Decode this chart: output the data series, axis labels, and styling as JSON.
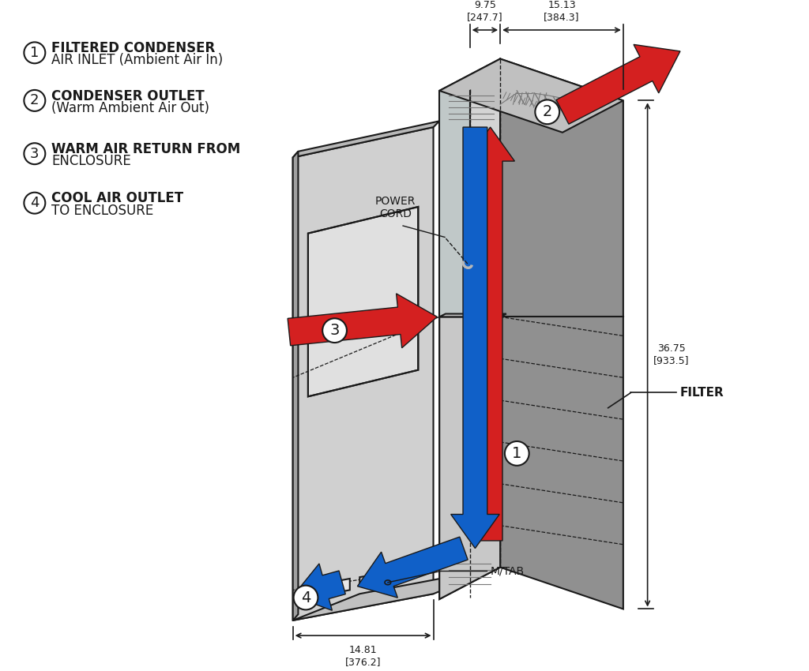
{
  "bg_color": "#ffffff",
  "lc": "#1a1a1a",
  "dark_face": "#909090",
  "mid_face": "#b8b8b8",
  "light_face": "#d4d4d4",
  "top_face": "#c0c0c0",
  "inner_face": "#c8c8c8",
  "door_face": "#d0d0d0",
  "door_edge": "#a0a0a0",
  "vent_color": "#787878",
  "red_arrow": "#d42020",
  "red_arrow_dark": "#aa1010",
  "blue_arrow": "#1060c8",
  "blue_arrow_dark": "#0040a0",
  "dim_color": "#1a1a1a",
  "label1_l1": "FILTERED CONDENSER",
  "label1_l2": "AIR INLET (Ambient Air In)",
  "label2_l1": "CONDENSER OUTLET",
  "label2_l2": "(Warm Ambient Air Out)",
  "label3_l1": "WARM AIR RETURN FROM",
  "label3_l2": "ENCLOSURE",
  "label4_l1": "COOL AIR OUTLET",
  "label4_l2": "TO ENCLOSURE",
  "dim1": "9.75\n[247.7]",
  "dim2": "15.13\n[384.3]",
  "dim3": "36.75\n[933.5]",
  "dim4": "14.81\n[376.2]",
  "lbl_filter": "FILTER",
  "lbl_power": "POWER\nCORD",
  "lbl_mtab": "M/TAB"
}
